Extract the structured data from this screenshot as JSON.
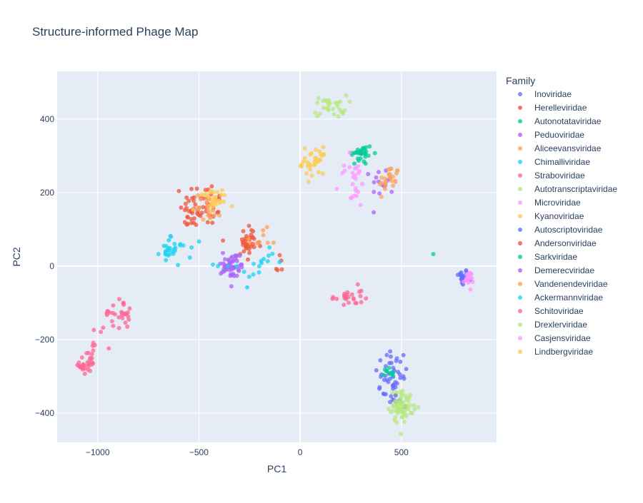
{
  "chart_data": {
    "type": "scatter",
    "title": "Structure-informed Phage Map",
    "xlabel": "PC1",
    "ylabel": "PC2",
    "xlim": [
      -1200,
      970
    ],
    "ylim": [
      -480,
      530
    ],
    "xticks": [
      -1000,
      -500,
      0,
      500
    ],
    "xtick_labels": [
      "−1000",
      "−500",
      "0",
      "500"
    ],
    "yticks": [
      -400,
      -200,
      0,
      200,
      400
    ],
    "ytick_labels": [
      "−400",
      "−200",
      "0",
      "200",
      "400"
    ],
    "grid": true,
    "legend_title": "Family",
    "legend_position": "right",
    "plot_background": "#e5ecf6",
    "series": [
      {
        "name": "Inoviridae",
        "color": "#636efa",
        "clusters": [
          {
            "cx": 800,
            "cy": -30,
            "sx": 15,
            "sy": 12,
            "n": 20
          },
          {
            "cx": 450,
            "cy": -300,
            "sx": 40,
            "sy": 40,
            "n": 30
          }
        ]
      },
      {
        "name": "Herelleviridae",
        "color": "#ef553b",
        "clusters": [
          {
            "cx": -470,
            "cy": 170,
            "sx": 50,
            "sy": 30,
            "n": 40
          },
          {
            "cx": -260,
            "cy": 60,
            "sx": 30,
            "sy": 20,
            "n": 20
          },
          {
            "cx": -100,
            "cy": 0,
            "sx": 15,
            "sy": 20,
            "n": 5
          }
        ]
      },
      {
        "name": "Autonotataviridae",
        "color": "#00cc96",
        "clusters": [
          {
            "cx": 300,
            "cy": 305,
            "sx": 30,
            "sy": 15,
            "n": 30
          },
          {
            "cx": 660,
            "cy": 35,
            "sx": 2,
            "sy": 2,
            "n": 1
          }
        ]
      },
      {
        "name": "Peduoviridae",
        "color": "#ab63fa",
        "clusters": [
          {
            "cx": -330,
            "cy": 0,
            "sx": 30,
            "sy": 20,
            "n": 30
          },
          {
            "cx": 410,
            "cy": 230,
            "sx": 30,
            "sy": 20,
            "n": 15
          }
        ]
      },
      {
        "name": "Aliceevansviridae",
        "color": "#ffa15a",
        "clusters": [
          {
            "cx": 440,
            "cy": 235,
            "sx": 25,
            "sy": 20,
            "n": 25
          },
          {
            "cx": -200,
            "cy": 70,
            "sx": 40,
            "sy": 15,
            "n": 10
          }
        ]
      },
      {
        "name": "Chimalliviridae",
        "color": "#19d3f3",
        "clusters": [
          {
            "cx": -650,
            "cy": 45,
            "sx": 20,
            "sy": 15,
            "n": 15
          },
          {
            "cx": -300,
            "cy": -20,
            "sx": 60,
            "sy": 20,
            "n": 10
          }
        ]
      },
      {
        "name": "Straboviridae",
        "color": "#ff6692",
        "clusters": [
          {
            "cx": 230,
            "cy": -85,
            "sx": 40,
            "sy": 15,
            "n": 25
          },
          {
            "cx": -1050,
            "cy": -270,
            "sx": 20,
            "sy": 15,
            "n": 20
          }
        ]
      },
      {
        "name": "Autotranscriptaviridae",
        "color": "#b6e880",
        "clusters": [
          {
            "cx": 500,
            "cy": -380,
            "sx": 30,
            "sy": 20,
            "n": 40
          },
          {
            "cx": 150,
            "cy": 435,
            "sx": 40,
            "sy": 15,
            "n": 30
          }
        ]
      },
      {
        "name": "Microviridae",
        "color": "#ff97ff",
        "clusters": [
          {
            "cx": 830,
            "cy": -35,
            "sx": 12,
            "sy": 10,
            "n": 20
          },
          {
            "cx": 250,
            "cy": 220,
            "sx": 40,
            "sy": 35,
            "n": 15
          }
        ]
      },
      {
        "name": "Kyanoviridae",
        "color": "#fecb52",
        "clusters": [
          {
            "cx": -420,
            "cy": 180,
            "sx": 30,
            "sy": 15,
            "n": 20
          },
          {
            "cx": 70,
            "cy": 280,
            "sx": 30,
            "sy": 20,
            "n": 20
          }
        ]
      },
      {
        "name": "Autoscriptoviridae",
        "color": "#636efa",
        "clusters": [
          {
            "cx": 470,
            "cy": -330,
            "sx": 25,
            "sy": 25,
            "n": 20
          }
        ]
      },
      {
        "name": "Andersonviridae",
        "color": "#ef553b",
        "clusters": [
          {
            "cx": -540,
            "cy": 140,
            "sx": 30,
            "sy": 25,
            "n": 20
          },
          {
            "cx": -250,
            "cy": 60,
            "sx": 30,
            "sy": 25,
            "n": 15
          }
        ]
      },
      {
        "name": "Sarkviridae",
        "color": "#00cc96",
        "clusters": [
          {
            "cx": 440,
            "cy": -290,
            "sx": 20,
            "sy": 10,
            "n": 10
          }
        ]
      },
      {
        "name": "Demerecviridae",
        "color": "#ab63fa",
        "clusters": [
          {
            "cx": -340,
            "cy": 0,
            "sx": 25,
            "sy": 20,
            "n": 20
          }
        ]
      },
      {
        "name": "Vandenendeviridae",
        "color": "#ffa15a",
        "clusters": [
          {
            "cx": -450,
            "cy": 160,
            "sx": 30,
            "sy": 20,
            "n": 15
          }
        ]
      },
      {
        "name": "Ackermannviridae",
        "color": "#19d3f3",
        "clusters": [
          {
            "cx": -620,
            "cy": 40,
            "sx": 40,
            "sy": 20,
            "n": 15
          },
          {
            "cx": -180,
            "cy": 20,
            "sx": 40,
            "sy": 15,
            "n": 10
          }
        ]
      },
      {
        "name": "Schitoviridae",
        "color": "#ff6692",
        "clusters": [
          {
            "cx": -900,
            "cy": -130,
            "sx": 35,
            "sy": 20,
            "n": 30
          },
          {
            "cx": -1020,
            "cy": -220,
            "sx": 25,
            "sy": 30,
            "n": 15
          }
        ]
      },
      {
        "name": "Drexlerviridae",
        "color": "#b6e880",
        "clusters": [
          {
            "cx": 510,
            "cy": -380,
            "sx": 25,
            "sy": 20,
            "n": 30
          }
        ]
      },
      {
        "name": "Casjensviridae",
        "color": "#ff97ff",
        "clusters": [
          {
            "cx": 280,
            "cy": 240,
            "sx": 30,
            "sy": 20,
            "n": 10
          }
        ]
      },
      {
        "name": "Lindbergviridae",
        "color": "#fecb52",
        "clusters": [
          {
            "cx": 80,
            "cy": 290,
            "sx": 30,
            "sy": 20,
            "n": 15
          },
          {
            "cx": -470,
            "cy": 170,
            "sx": 30,
            "sy": 20,
            "n": 10
          }
        ]
      }
    ]
  }
}
